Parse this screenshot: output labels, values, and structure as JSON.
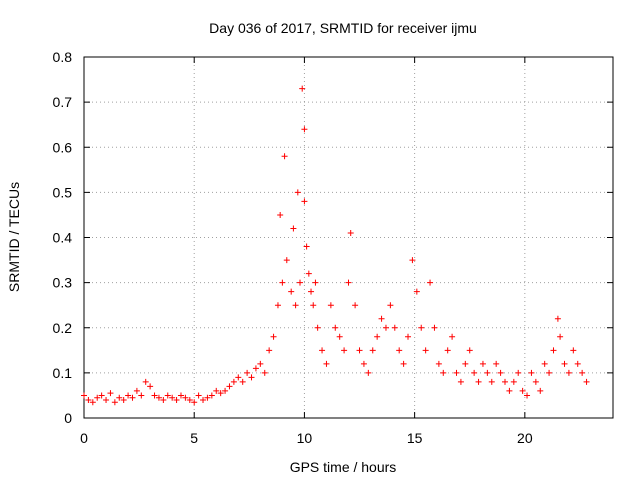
{
  "chart_data": {
    "type": "scatter",
    "title": "Day 036 of 2017, SRMTID for receiver ijmu",
    "xlabel": "GPS time / hours",
    "ylabel": "SRMTID / TECUs",
    "xlim": [
      0,
      24
    ],
    "ylim": [
      0,
      0.8
    ],
    "xticks": [
      0,
      5,
      10,
      15,
      20
    ],
    "yticks": [
      0,
      0.1,
      0.2,
      0.3,
      0.4,
      0.5,
      0.6,
      0.7,
      0.8
    ],
    "xtick_labels": [
      "0",
      "5",
      "10",
      "15",
      "20"
    ],
    "ytick_labels": [
      "0",
      "0.1",
      "0.2",
      "0.3",
      "0.4",
      "0.5",
      "0.6",
      "0.7",
      "0.8"
    ],
    "grid": true,
    "marker": "+",
    "color": "#ff0000",
    "series": [
      {
        "name": "SRMTID",
        "points": [
          [
            0.0,
            0.05
          ],
          [
            0.2,
            0.04
          ],
          [
            0.4,
            0.035
          ],
          [
            0.6,
            0.045
          ],
          [
            0.8,
            0.05
          ],
          [
            1.0,
            0.04
          ],
          [
            1.2,
            0.055
          ],
          [
            1.4,
            0.035
          ],
          [
            1.6,
            0.045
          ],
          [
            1.8,
            0.04
          ],
          [
            2.0,
            0.05
          ],
          [
            2.2,
            0.045
          ],
          [
            2.4,
            0.06
          ],
          [
            2.6,
            0.05
          ],
          [
            2.8,
            0.08
          ],
          [
            3.0,
            0.07
          ],
          [
            3.2,
            0.05
          ],
          [
            3.4,
            0.045
          ],
          [
            3.6,
            0.04
          ],
          [
            3.8,
            0.05
          ],
          [
            4.0,
            0.045
          ],
          [
            4.2,
            0.04
          ],
          [
            4.4,
            0.05
          ],
          [
            4.6,
            0.045
          ],
          [
            4.8,
            0.04
          ],
          [
            5.0,
            0.035
          ],
          [
            5.2,
            0.05
          ],
          [
            5.4,
            0.04
          ],
          [
            5.6,
            0.045
          ],
          [
            5.8,
            0.05
          ],
          [
            6.0,
            0.06
          ],
          [
            6.2,
            0.055
          ],
          [
            6.4,
            0.06
          ],
          [
            6.6,
            0.07
          ],
          [
            6.8,
            0.08
          ],
          [
            7.0,
            0.09
          ],
          [
            7.2,
            0.08
          ],
          [
            7.4,
            0.1
          ],
          [
            7.6,
            0.09
          ],
          [
            7.8,
            0.11
          ],
          [
            8.0,
            0.12
          ],
          [
            8.2,
            0.1
          ],
          [
            8.4,
            0.15
          ],
          [
            8.6,
            0.18
          ],
          [
            8.8,
            0.25
          ],
          [
            8.9,
            0.45
          ],
          [
            9.0,
            0.3
          ],
          [
            9.1,
            0.58
          ],
          [
            9.2,
            0.35
          ],
          [
            9.4,
            0.28
          ],
          [
            9.5,
            0.42
          ],
          [
            9.6,
            0.25
          ],
          [
            9.7,
            0.5
          ],
          [
            9.8,
            0.3
          ],
          [
            9.9,
            0.73
          ],
          [
            10.0,
            0.64
          ],
          [
            10.0,
            0.48
          ],
          [
            10.1,
            0.38
          ],
          [
            10.2,
            0.32
          ],
          [
            10.3,
            0.28
          ],
          [
            10.4,
            0.25
          ],
          [
            10.5,
            0.3
          ],
          [
            10.6,
            0.2
          ],
          [
            10.8,
            0.15
          ],
          [
            11.0,
            0.12
          ],
          [
            11.2,
            0.25
          ],
          [
            11.4,
            0.2
          ],
          [
            11.6,
            0.18
          ],
          [
            11.8,
            0.15
          ],
          [
            12.0,
            0.3
          ],
          [
            12.1,
            0.41
          ],
          [
            12.3,
            0.25
          ],
          [
            12.5,
            0.15
          ],
          [
            12.7,
            0.12
          ],
          [
            12.9,
            0.1
          ],
          [
            13.1,
            0.15
          ],
          [
            13.3,
            0.18
          ],
          [
            13.5,
            0.22
          ],
          [
            13.7,
            0.2
          ],
          [
            13.9,
            0.25
          ],
          [
            14.1,
            0.2
          ],
          [
            14.3,
            0.15
          ],
          [
            14.5,
            0.12
          ],
          [
            14.7,
            0.18
          ],
          [
            14.9,
            0.35
          ],
          [
            15.1,
            0.28
          ],
          [
            15.3,
            0.2
          ],
          [
            15.5,
            0.15
          ],
          [
            15.7,
            0.3
          ],
          [
            15.9,
            0.2
          ],
          [
            16.1,
            0.12
          ],
          [
            16.3,
            0.1
          ],
          [
            16.5,
            0.15
          ],
          [
            16.7,
            0.18
          ],
          [
            16.9,
            0.1
          ],
          [
            17.1,
            0.08
          ],
          [
            17.3,
            0.12
          ],
          [
            17.5,
            0.15
          ],
          [
            17.7,
            0.1
          ],
          [
            17.9,
            0.08
          ],
          [
            18.1,
            0.12
          ],
          [
            18.3,
            0.1
          ],
          [
            18.5,
            0.08
          ],
          [
            18.7,
            0.12
          ],
          [
            18.9,
            0.1
          ],
          [
            19.1,
            0.08
          ],
          [
            19.3,
            0.06
          ],
          [
            19.5,
            0.08
          ],
          [
            19.7,
            0.1
          ],
          [
            19.9,
            0.06
          ],
          [
            20.1,
            0.05
          ],
          [
            20.3,
            0.1
          ],
          [
            20.5,
            0.08
          ],
          [
            20.7,
            0.06
          ],
          [
            20.9,
            0.12
          ],
          [
            21.1,
            0.1
          ],
          [
            21.3,
            0.15
          ],
          [
            21.5,
            0.22
          ],
          [
            21.6,
            0.18
          ],
          [
            21.8,
            0.12
          ],
          [
            22.0,
            0.1
          ],
          [
            22.2,
            0.15
          ],
          [
            22.4,
            0.12
          ],
          [
            22.6,
            0.1
          ],
          [
            22.8,
            0.08
          ]
        ]
      }
    ]
  }
}
